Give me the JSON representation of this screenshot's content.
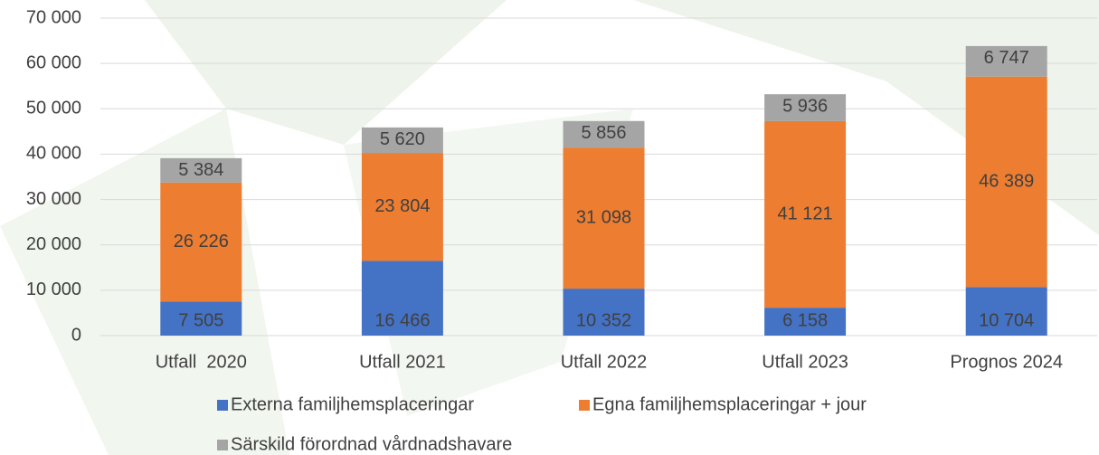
{
  "chart_data": {
    "type": "stacked_bar",
    "categories": [
      "Utfall  2020",
      "Utfall 2021",
      "Utfall 2022",
      "Utfall 2023",
      "Prognos 2024"
    ],
    "series": [
      {
        "name": "Externa familjhemsplaceringar",
        "color": "#4472c4",
        "values": [
          7505,
          16466,
          10352,
          6158,
          10704
        ],
        "value_labels": [
          "7 505",
          "16 466",
          "10 352",
          "6 158",
          "10 704"
        ]
      },
      {
        "name": "Egna familjhemsplaceringar + jour",
        "color": "#ed7d31",
        "values": [
          26226,
          23804,
          31098,
          41121,
          46389
        ],
        "value_labels": [
          "26 226",
          "23 804",
          "31 098",
          "41 121",
          "46 389"
        ]
      },
      {
        "name": "Särskild förordnad vårdnadshavare",
        "color": "#a5a5a5",
        "values": [
          5384,
          5620,
          5856,
          5936,
          6747
        ],
        "value_labels": [
          "5 384",
          "5 620",
          "5 856",
          "5 936",
          "6 747"
        ]
      }
    ],
    "ylim": [
      0,
      70000
    ],
    "yticks": [
      {
        "value": 0,
        "label": "0"
      },
      {
        "value": 10000,
        "label": "10 000"
      },
      {
        "value": 20000,
        "label": "20 000"
      },
      {
        "value": 30000,
        "label": "30 000"
      },
      {
        "value": 40000,
        "label": "40 000"
      },
      {
        "value": 50000,
        "label": "50 000"
      },
      {
        "value": 60000,
        "label": "60 000"
      },
      {
        "value": 70000,
        "label": "70 000"
      }
    ],
    "grid": true
  }
}
